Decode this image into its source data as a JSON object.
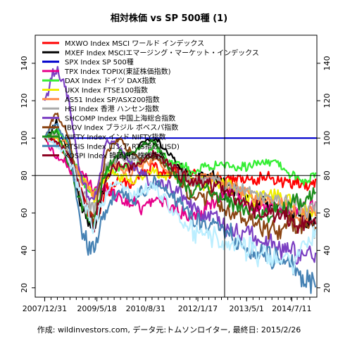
{
  "chart_data": {
    "type": "line",
    "title": "相対株価 vs SP 500種 (1)",
    "footer": "作成: wildinvestors.com, データ元:トムソンロイター, 最終日: 2015/2/26",
    "xlabel": "",
    "ylabel": "",
    "x_tick_labels": [
      "2007/12/31",
      "2009/5/18",
      "2010/8/31",
      "2012/1/17",
      "2013/5/1",
      "2014/7/11"
    ],
    "x_tick_dates": [
      "2007-12-31",
      "2009-05-18",
      "2010-08-31",
      "2012-01-17",
      "2013-05-01",
      "2014-07-11"
    ],
    "xlim": [
      "2007-10-01",
      "2015-03-10"
    ],
    "ylim": [
      15,
      155
    ],
    "y_ticks": [
      20,
      40,
      60,
      80,
      100,
      120,
      140
    ],
    "grid": false,
    "legend_position": "top-left",
    "reference_lines": {
      "horizontal_black": 80,
      "horizontal_blue": 100,
      "vertical_date": "2012-10-01"
    },
    "series": [
      {
        "name": "MXWO Index MSCI ワールド インデックス",
        "color": "#FF0000",
        "width": 2.2,
        "values": [
          100,
          98,
          86,
          70,
          58,
          72,
          78,
          76,
          82,
          85,
          80,
          84,
          80,
          79,
          79,
          78,
          79,
          78,
          79,
          78,
          77,
          76,
          76
        ]
      },
      {
        "name": "MXEF Index MSCIエマージング・マーケット・インデックス",
        "color": "#000000",
        "width": 2.2,
        "values": [
          100,
          108,
          90,
          62,
          52,
          78,
          90,
          92,
          98,
          100,
          92,
          84,
          78,
          80,
          78,
          74,
          72,
          67,
          64,
          62,
          60,
          58,
          57
        ]
      },
      {
        "name": "SPX Index SP 500種",
        "color": "#0000CC",
        "width": 2,
        "values": [
          100,
          100,
          100,
          100,
          100,
          100,
          100,
          100,
          100,
          100,
          100,
          100,
          100,
          100,
          100,
          100,
          100,
          100,
          100,
          100,
          100,
          100,
          100
        ]
      },
      {
        "name": "TPX Index TOPIX(東証株価指数)",
        "color": "#E6008A",
        "width": 2.2,
        "values": [
          100,
          90,
          84,
          82,
          74,
          72,
          70,
          66,
          64,
          68,
          64,
          60,
          58,
          60,
          68,
          72,
          66,
          62,
          64,
          60,
          62,
          64,
          63
        ]
      },
      {
        "name": "DAX Index ドイツ DAX指数",
        "color": "#33EE33",
        "width": 2.2,
        "values": [
          100,
          104,
          96,
          78,
          68,
          82,
          84,
          84,
          90,
          96,
          88,
          86,
          82,
          84,
          86,
          86,
          84,
          86,
          88,
          86,
          80,
          76,
          80
        ]
      },
      {
        "name": "UKX Index FTSE100指数",
        "color": "#EEEE00",
        "width": 2.2,
        "values": [
          100,
          100,
          90,
          78,
          70,
          80,
          80,
          78,
          80,
          82,
          80,
          80,
          76,
          76,
          76,
          74,
          70,
          68,
          70,
          68,
          66,
          62,
          62
        ]
      },
      {
        "name": "AS51 Index SP/ASX200指数",
        "color": "#FF8C4A",
        "width": 2.2,
        "values": [
          100,
          102,
          96,
          76,
          70,
          86,
          86,
          82,
          86,
          88,
          82,
          80,
          76,
          78,
          80,
          76,
          72,
          68,
          66,
          66,
          62,
          58,
          60
        ]
      },
      {
        "name": "HSI Index 香港 ハンセン指数",
        "color": "#AAAAAA",
        "width": 2.2,
        "values": [
          100,
          102,
          92,
          70,
          62,
          84,
          90,
          88,
          90,
          92,
          86,
          82,
          76,
          78,
          78,
          74,
          72,
          70,
          68,
          66,
          64,
          62,
          62
        ]
      },
      {
        "name": "SHCOMP Index 中国上海総合指数",
        "color": "#7B3FC2",
        "width": 2.2,
        "values": [
          120,
          140,
          118,
          76,
          64,
          98,
          96,
          86,
          80,
          76,
          74,
          72,
          62,
          58,
          56,
          52,
          50,
          48,
          44,
          42,
          40,
          38,
          36
        ]
      },
      {
        "name": "IBOV Index ブラジル ボベスパ指数",
        "color": "#8B4513",
        "width": 2.2,
        "values": [
          100,
          114,
          100,
          66,
          56,
          92,
          100,
          92,
          88,
          90,
          84,
          76,
          70,
          68,
          66,
          60,
          56,
          54,
          52,
          52,
          54,
          54,
          52
        ]
      },
      {
        "name": "NIFTY Index インド NIFTY指数",
        "color": "#1B8C1B",
        "width": 2.2,
        "values": [
          100,
          104,
          84,
          64,
          54,
          84,
          92,
          90,
          96,
          98,
          84,
          78,
          72,
          72,
          70,
          66,
          62,
          60,
          60,
          62,
          66,
          66,
          72
        ]
      },
      {
        "name": "RTSIS Index ロシア RTS指数(USD)",
        "color": "#4682B4",
        "width": 2.2,
        "values": [
          100,
          108,
          96,
          50,
          38,
          62,
          72,
          66,
          70,
          76,
          70,
          66,
          56,
          54,
          54,
          48,
          44,
          40,
          38,
          36,
          32,
          22,
          26
        ]
      },
      {
        "name": "KOSPI Index 韓国総合株価指数",
        "color": "#8B0020",
        "width": 2.2,
        "values": [
          100,
          98,
          90,
          70,
          52,
          80,
          86,
          84,
          88,
          92,
          86,
          80,
          76,
          76,
          74,
          70,
          66,
          62,
          60,
          58,
          56,
          54,
          56
        ]
      },
      {
        "name": "",
        "color": "#BBEEFF",
        "width": 2.2,
        "values": [
          100,
          96,
          88,
          70,
          52,
          70,
          76,
          70,
          72,
          74,
          64,
          58,
          50,
          48,
          46,
          44,
          42,
          40,
          38,
          36,
          34,
          40,
          50
        ]
      }
    ]
  }
}
